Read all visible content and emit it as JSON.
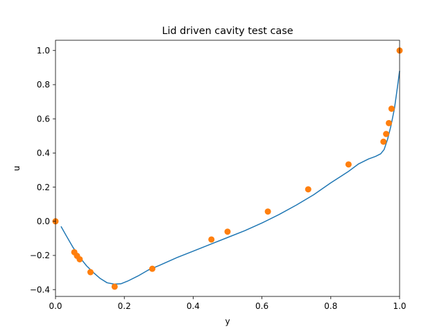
{
  "chart_data": {
    "type": "line",
    "title": "Lid driven cavity test case",
    "xlabel": "y",
    "ylabel": "u",
    "xlim": [
      0.0,
      1.0
    ],
    "ylim": [
      -0.44,
      1.06
    ],
    "grid": false,
    "x_ticks": [
      0.0,
      0.2,
      0.4,
      0.6,
      0.8,
      1.0
    ],
    "x_tick_labels": [
      "0.0",
      "0.2",
      "0.4",
      "0.6",
      "0.8",
      "1.0"
    ],
    "y_ticks": [
      -0.4,
      -0.2,
      0.0,
      0.2,
      0.4,
      0.6,
      0.8,
      1.0
    ],
    "y_tick_labels": [
      "−0.4",
      "−0.2",
      "0.0",
      "0.2",
      "0.4",
      "0.6",
      "0.8",
      "1.0"
    ],
    "series": [
      {
        "kind": "line",
        "color": "#1f77b4",
        "x": [
          0.016,
          0.03,
          0.05,
          0.07,
          0.09,
          0.11,
          0.13,
          0.15,
          0.17,
          0.19,
          0.21,
          0.24,
          0.27,
          0.3,
          0.35,
          0.4,
          0.45,
          0.5,
          0.55,
          0.6,
          0.65,
          0.7,
          0.75,
          0.8,
          0.85,
          0.88,
          0.91,
          0.93,
          0.945,
          0.955,
          0.965,
          0.975,
          0.985,
          0.992,
          1.0
        ],
        "y": [
          -0.03,
          -0.08,
          -0.15,
          -0.21,
          -0.26,
          -0.3,
          -0.335,
          -0.36,
          -0.368,
          -0.366,
          -0.35,
          -0.32,
          -0.285,
          -0.26,
          -0.215,
          -0.175,
          -0.135,
          -0.095,
          -0.055,
          -0.01,
          0.04,
          0.095,
          0.155,
          0.225,
          0.29,
          0.335,
          0.365,
          0.38,
          0.395,
          0.42,
          0.48,
          0.56,
          0.66,
          0.76,
          0.88
        ]
      },
      {
        "kind": "scatter",
        "color": "#ff7f0e",
        "x": [
          0.0,
          0.0547,
          0.0625,
          0.0703,
          0.1016,
          0.1719,
          0.2813,
          0.4531,
          0.5,
          0.6172,
          0.7344,
          0.8516,
          0.9531,
          0.9609,
          0.9688,
          0.9766,
          1.0
        ],
        "y": [
          0.0,
          -0.1812,
          -0.2023,
          -0.2223,
          -0.2979,
          -0.3829,
          -0.2781,
          -0.1065,
          -0.0608,
          0.057,
          0.1872,
          0.333,
          0.466,
          0.5112,
          0.5749,
          0.6592,
          1.0
        ]
      }
    ]
  }
}
